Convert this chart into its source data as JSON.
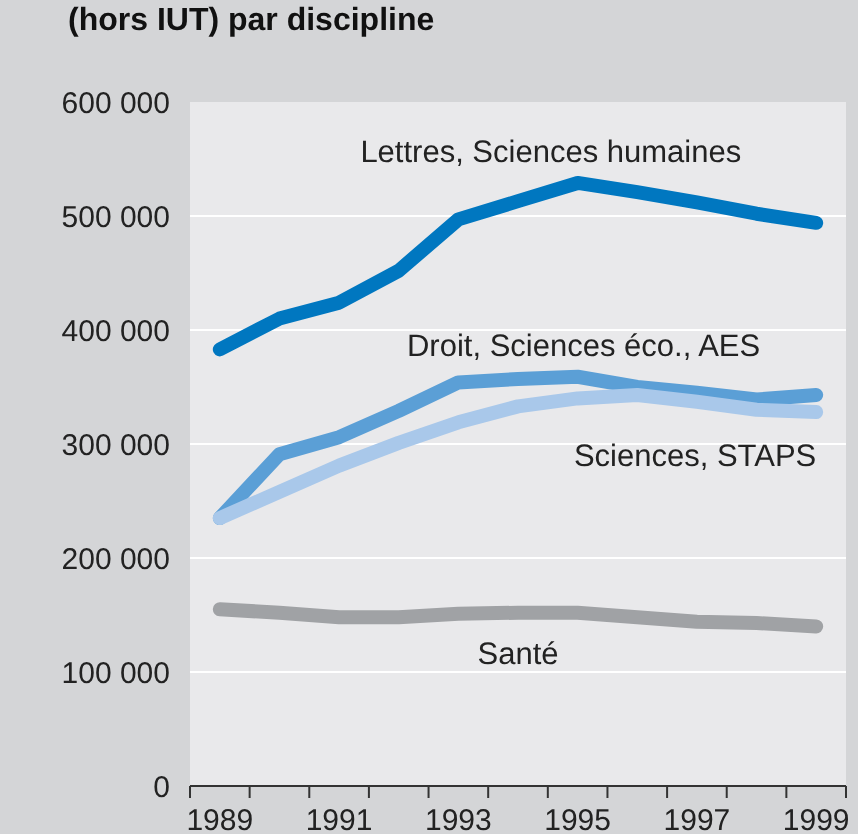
{
  "chart_data": {
    "type": "line",
    "title": "(hors IUT) par discipline",
    "x": [
      1989,
      1990,
      1991,
      1992,
      1993,
      1994,
      1995,
      1996,
      1997,
      1998,
      1999
    ],
    "series": [
      {
        "name": "Lettres, Sciences humaines",
        "color": "#0077c0",
        "values": [
          383000,
          410000,
          424000,
          452000,
          497000,
          513000,
          529000,
          521000,
          512000,
          502000,
          494000
        ]
      },
      {
        "name": "Droit, Sciences éco., AES",
        "color": "#5b9fd6",
        "values": [
          235000,
          291000,
          306000,
          329000,
          354000,
          357000,
          359000,
          350000,
          345000,
          339000,
          343000
        ]
      },
      {
        "name": "Sciences, STAPS",
        "color": "#a9c8ea",
        "values": [
          235000,
          258000,
          281000,
          301000,
          319000,
          333000,
          340000,
          343000,
          337000,
          330000,
          328000
        ]
      },
      {
        "name": "Santé",
        "color": "#a0a2a5",
        "values": [
          155000,
          152000,
          148000,
          148000,
          151000,
          152000,
          152000,
          148000,
          144000,
          143000,
          140000
        ]
      }
    ],
    "xlim": [
      1988.5,
      1999.5
    ],
    "xticks": [
      {
        "value": 1988.5,
        "label": null
      },
      1989,
      {
        "value": 1989.5,
        "label": null
      },
      {
        "value": 1990.5,
        "label": null
      },
      1991,
      {
        "value": 1991.5,
        "label": null
      },
      {
        "value": 1992.5,
        "label": null
      },
      1993,
      {
        "value": 1993.5,
        "label": null
      },
      {
        "value": 1994.5,
        "label": null
      },
      1995,
      {
        "value": 1995.5,
        "label": null
      },
      {
        "value": 1996.5,
        "label": null
      },
      1997,
      {
        "value": 1997.5,
        "label": null
      },
      {
        "value": 1998.5,
        "label": null
      },
      1999,
      {
        "value": 1999.5,
        "label": null
      }
    ],
    "ylim": [
      0,
      600000
    ],
    "yticks": [
      0,
      100000,
      200000,
      300000,
      400000,
      500000,
      600000
    ],
    "grid": "y",
    "marker": "none",
    "line_style": "solid"
  }
}
